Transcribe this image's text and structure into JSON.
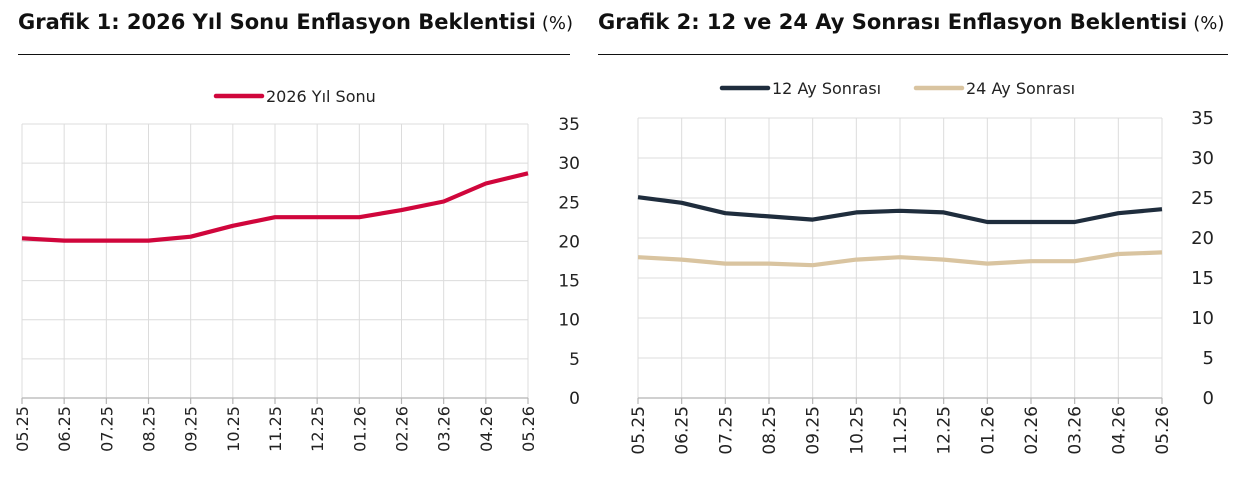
{
  "chart_data": [
    {
      "type": "line",
      "title": "Grafik 1: 2026 Yıl Sonu Enflasyon Beklentisi",
      "unit": "(%)",
      "categories": [
        "05.25",
        "06.25",
        "07.25",
        "08.25",
        "09.25",
        "10.25",
        "11.25",
        "12.25",
        "01.26",
        "02.26",
        "03.26",
        "04.26",
        "05.26"
      ],
      "series": [
        {
          "name": "2026 Yıl Sonu",
          "color": "#d0063c",
          "values": [
            20.4,
            20.1,
            20.1,
            20.1,
            20.6,
            22.0,
            23.1,
            23.1,
            23.1,
            24.0,
            25.1,
            27.4,
            28.7
          ]
        }
      ],
      "ylim": [
        0,
        35
      ],
      "yticks": [
        0,
        5,
        10,
        15,
        20,
        25,
        30,
        35
      ],
      "y_axis_side": "right",
      "grid": true,
      "legend": "top"
    },
    {
      "type": "line",
      "title": "Grafik 2: 12 ve 24 Ay Sonrası Enflasyon Beklentisi",
      "unit": "(%)",
      "categories": [
        "05.25",
        "06.25",
        "07.25",
        "08.25",
        "09.25",
        "10.25",
        "11.25",
        "12.25",
        "01.26",
        "02.26",
        "03.26",
        "04.26",
        "05.26"
      ],
      "series": [
        {
          "name": "12 Ay Sonrası",
          "color": "#1f2d3d",
          "values": [
            25.1,
            24.4,
            23.1,
            22.7,
            22.3,
            23.2,
            23.4,
            23.2,
            22.0,
            22.0,
            22.0,
            23.1,
            23.6
          ]
        },
        {
          "name": "24 Ay Sonrası",
          "color": "#d9c4a0",
          "values": [
            17.6,
            17.3,
            16.8,
            16.8,
            16.6,
            17.3,
            17.6,
            17.3,
            16.8,
            17.1,
            17.1,
            18.0,
            18.2
          ]
        }
      ],
      "ylim": [
        0,
        35
      ],
      "yticks": [
        0,
        5,
        10,
        15,
        20,
        25,
        30,
        35
      ],
      "y_axis_side": "right",
      "grid": true,
      "legend": "top"
    }
  ]
}
